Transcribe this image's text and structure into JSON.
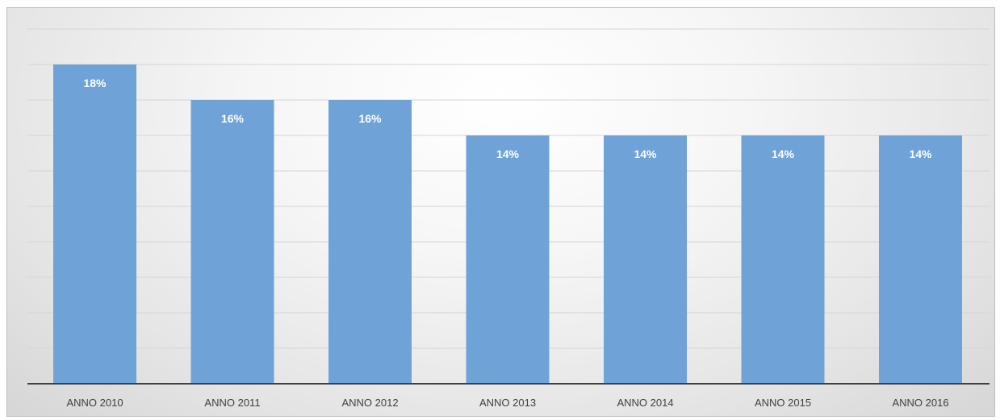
{
  "chart_data": {
    "type": "bar",
    "categories": [
      "ANNO 2010",
      "ANNO 2011",
      "ANNO 2012",
      "ANNO 2013",
      "ANNO 2014",
      "ANNO 2015",
      "ANNO 2016"
    ],
    "values": [
      18,
      16,
      16,
      14,
      14,
      14,
      14
    ],
    "data_labels": [
      "18%",
      "16%",
      "16%",
      "14%",
      "14%",
      "14%",
      "14%"
    ],
    "unit": "%",
    "ylim": [
      0,
      20
    ],
    "y_major_step": 2,
    "grid": true,
    "legend": "none",
    "bar_color": "#6fa3d8",
    "label_color": "#ffffff",
    "axis_color": "#404040",
    "title": "",
    "xlabel": "",
    "ylabel": ""
  }
}
